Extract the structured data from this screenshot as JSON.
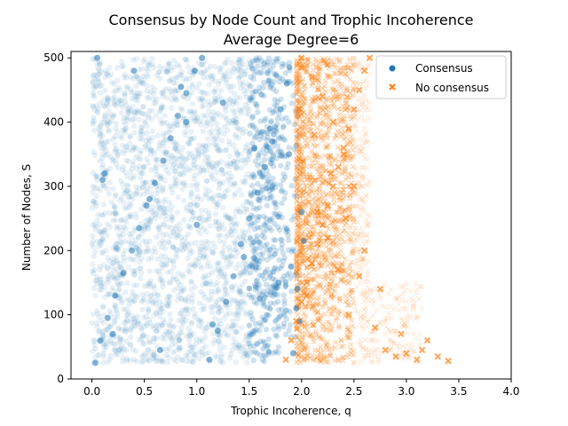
{
  "chart_data": {
    "type": "scatter",
    "title": "Consensus by Node Count and Trophic Incoherence",
    "subtitle": "Average Degree=6",
    "xlabel": "Trophic Incoherence, q",
    "ylabel": "Number of Nodes, S",
    "xlim": [
      -0.2,
      4.0
    ],
    "ylim": [
      0,
      510
    ],
    "xticks": [
      "0.0",
      "0.5",
      "1.0",
      "1.5",
      "2.0",
      "2.5",
      "3.0",
      "3.5",
      "4.0"
    ],
    "yticks": [
      "0",
      "100",
      "200",
      "300",
      "400",
      "500"
    ],
    "grid": false,
    "legend_position": "top-right",
    "series": [
      {
        "name": "Consensus",
        "marker": "circle",
        "color": "#1f77b4",
        "x": [
          0.03,
          0.08,
          0.15,
          0.22,
          0.3,
          0.38,
          0.45,
          0.52,
          0.6,
          0.68,
          0.75,
          0.82,
          0.9,
          0.98,
          1.05,
          1.12,
          1.2,
          1.28,
          1.35,
          1.42,
          1.5,
          1.58,
          1.65,
          1.72,
          1.8,
          1.86,
          1.92,
          1.96,
          2.0,
          0.05,
          0.4,
          0.85,
          1.25,
          1.7,
          1.88,
          0.1,
          0.55,
          1.0,
          1.45,
          1.78,
          1.95,
          0.2,
          0.65,
          1.15,
          1.6,
          1.9,
          2.02,
          0.12,
          0.9,
          1.55,
          1.98
        ],
        "y": [
          25,
          60,
          95,
          130,
          165,
          200,
          235,
          270,
          305,
          340,
          375,
          410,
          445,
          480,
          500,
          30,
          75,
          120,
          160,
          210,
          250,
          290,
          330,
          370,
          420,
          460,
          40,
          140,
          260,
          500,
          480,
          455,
          430,
          390,
          350,
          310,
          280,
          240,
          190,
          150,
          110,
          70,
          45,
          85,
          125,
          175,
          215,
          320,
          400,
          360,
          90
        ]
      },
      {
        "name": "No consensus",
        "marker": "x",
        "color": "#ff7f0e",
        "x": [
          1.85,
          1.9,
          1.95,
          2.0,
          2.05,
          2.1,
          2.15,
          2.2,
          2.25,
          2.3,
          2.35,
          2.4,
          2.45,
          2.5,
          2.55,
          2.6,
          2.65,
          2.7,
          2.8,
          2.9,
          3.0,
          3.1,
          3.2,
          3.3,
          3.4,
          2.0,
          2.1,
          2.2,
          2.3,
          2.4,
          2.5,
          2.15,
          2.25,
          2.35,
          2.05,
          2.45,
          2.6,
          2.75,
          2.95,
          3.15,
          2.12,
          2.28,
          2.42,
          2.55,
          1.98
        ],
        "y": [
          30,
          60,
          90,
          120,
          150,
          180,
          210,
          240,
          270,
          300,
          330,
          360,
          390,
          420,
          450,
          480,
          500,
          80,
          45,
          35,
          40,
          30,
          60,
          35,
          28,
          500,
          470,
          440,
          400,
          350,
          300,
          260,
          220,
          170,
          130,
          100,
          200,
          140,
          70,
          45,
          380,
          320,
          250,
          160,
          420
        ]
      }
    ]
  }
}
